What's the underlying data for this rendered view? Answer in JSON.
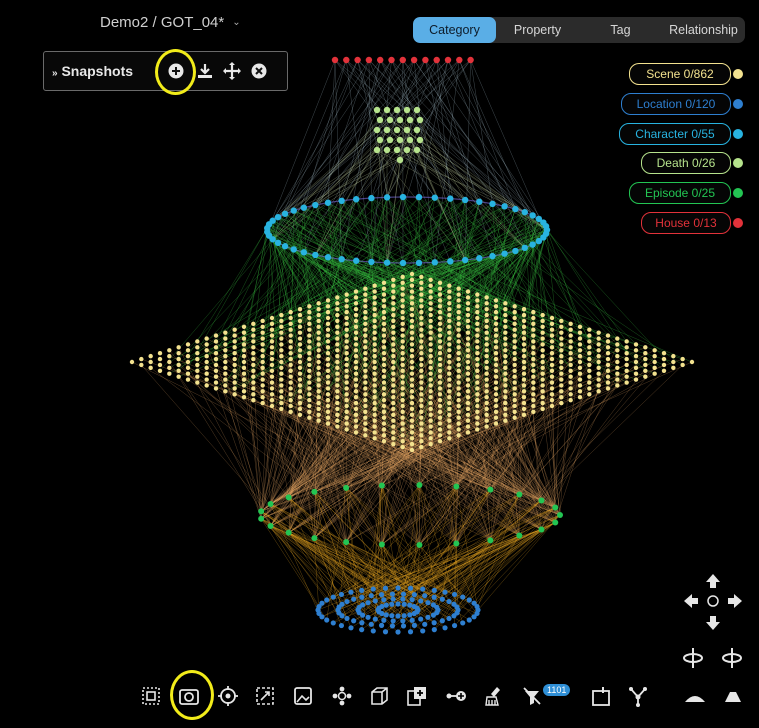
{
  "header": {
    "title": "Demo2 / GOT_04*"
  },
  "tabs": [
    {
      "label": "Category",
      "active": true
    },
    {
      "label": "Property",
      "active": false
    },
    {
      "label": "Tag",
      "active": false
    },
    {
      "label": "Relationship",
      "active": false
    }
  ],
  "snapshots": {
    "label": "Snapshots",
    "buttons": [
      "add-icon",
      "download-icon",
      "move-icon",
      "close-icon"
    ]
  },
  "legend": [
    {
      "label": "Scene 0/862",
      "color": "#f3e28f"
    },
    {
      "label": "Location 0/120",
      "color": "#2e7fd0"
    },
    {
      "label": "Character 0/55",
      "color": "#28b3e0"
    },
    {
      "label": "Death 0/26",
      "color": "#b6e38c"
    },
    {
      "label": "Episode 0/25",
      "color": "#23c553"
    },
    {
      "label": "House 0/13",
      "color": "#e2323a"
    }
  ],
  "toolbar": {
    "icons": [
      "select-box-icon",
      "snapshot-camera-icon",
      "focus-target-icon",
      "fit-view-icon",
      "image-icon",
      "cluster-icon",
      "cube-icon",
      "add-node-icon",
      "add-edge-icon",
      "brush-icon",
      "filter-icon",
      "export-icon",
      "fork-icon"
    ],
    "badge": "1101"
  },
  "accent": "#5aaee6",
  "highlight": "#f2ec1a"
}
